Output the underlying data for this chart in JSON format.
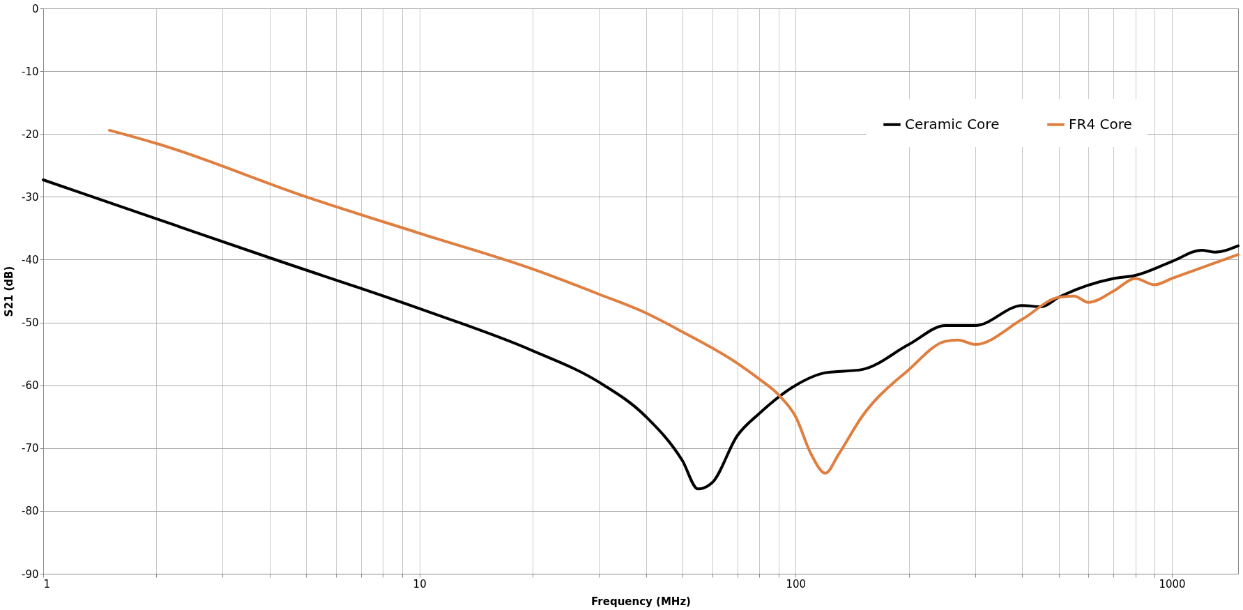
{
  "chart_data": {
    "type": "line",
    "xlabel": "Frequency (MHz)",
    "ylabel": "S21 (dB)",
    "log": "x",
    "xlim": [
      1,
      1500
    ],
    "ylim": [
      -90,
      0
    ],
    "xticks": [
      1,
      {
        "value": 2,
        "label": null
      },
      {
        "value": 3,
        "label": null
      },
      {
        "value": 4,
        "label": null
      },
      {
        "value": 5,
        "label": null
      },
      {
        "value": 6,
        "label": null
      },
      {
        "value": 7,
        "label": null
      },
      {
        "value": 8,
        "label": null
      },
      {
        "value": 9,
        "label": null
      },
      10,
      {
        "value": 20,
        "label": null
      },
      {
        "value": 30,
        "label": null
      },
      {
        "value": 40,
        "label": null
      },
      {
        "value": 50,
        "label": null
      },
      {
        "value": 60,
        "label": null
      },
      {
        "value": 70,
        "label": null
      },
      {
        "value": 80,
        "label": null
      },
      {
        "value": 90,
        "label": null
      },
      100,
      {
        "value": 200,
        "label": null
      },
      {
        "value": 300,
        "label": null
      },
      {
        "value": 400,
        "label": null
      },
      {
        "value": 500,
        "label": null
      },
      {
        "value": 600,
        "label": null
      },
      {
        "value": 700,
        "label": null
      },
      {
        "value": 800,
        "label": null
      },
      {
        "value": 900,
        "label": null
      },
      1000
    ],
    "yticks": [
      -90,
      -80,
      -70,
      -60,
      -50,
      -40,
      -30,
      -20,
      -10,
      0
    ],
    "grid": true,
    "legend": "top right",
    "marker": "none",
    "line_style": "solid",
    "series": [
      {
        "name": "Ceramic Core",
        "color": "#000000",
        "x": [
          1,
          2,
          4,
          10,
          20,
          30,
          40,
          50,
          55,
          60,
          70,
          80,
          100,
          120,
          150,
          200,
          250,
          300,
          400,
          450,
          500,
          700,
          800,
          1000,
          1200,
          1300,
          1500
        ],
        "values": [
          -27.3,
          -33.5,
          -39.7,
          -47.8,
          -54.5,
          -59.5,
          -65,
          -72,
          -76.5,
          -75.5,
          -68,
          -64.5,
          -60,
          -58,
          -57.5,
          -53.5,
          -50.5,
          -50.5,
          -47.3,
          -47.5,
          -46,
          -43,
          -42.5,
          -40.3,
          -38.5,
          -38.8,
          -37.8
        ]
      },
      {
        "name": "FR4 Core",
        "color": "#df7e3f",
        "x": [
          1.5,
          2,
          5,
          10,
          20,
          30,
          40,
          50,
          70,
          80,
          90,
          100,
          110,
          120,
          130,
          150,
          200,
          250,
          270,
          300,
          400,
          500,
          550,
          600,
          700,
          800,
          900,
          1000,
          1500
        ],
        "values": [
          -19.4,
          -21.5,
          -30,
          -35.8,
          -41.5,
          -45.5,
          -48.5,
          -51.5,
          -56.5,
          -59,
          -61.5,
          -65,
          -71,
          -74,
          -71,
          -65,
          -57.5,
          -53,
          -52.8,
          -53.5,
          -49.5,
          -46,
          -45.8,
          -46.8,
          -45,
          -43,
          -44,
          -43,
          -39.2
        ]
      }
    ]
  }
}
